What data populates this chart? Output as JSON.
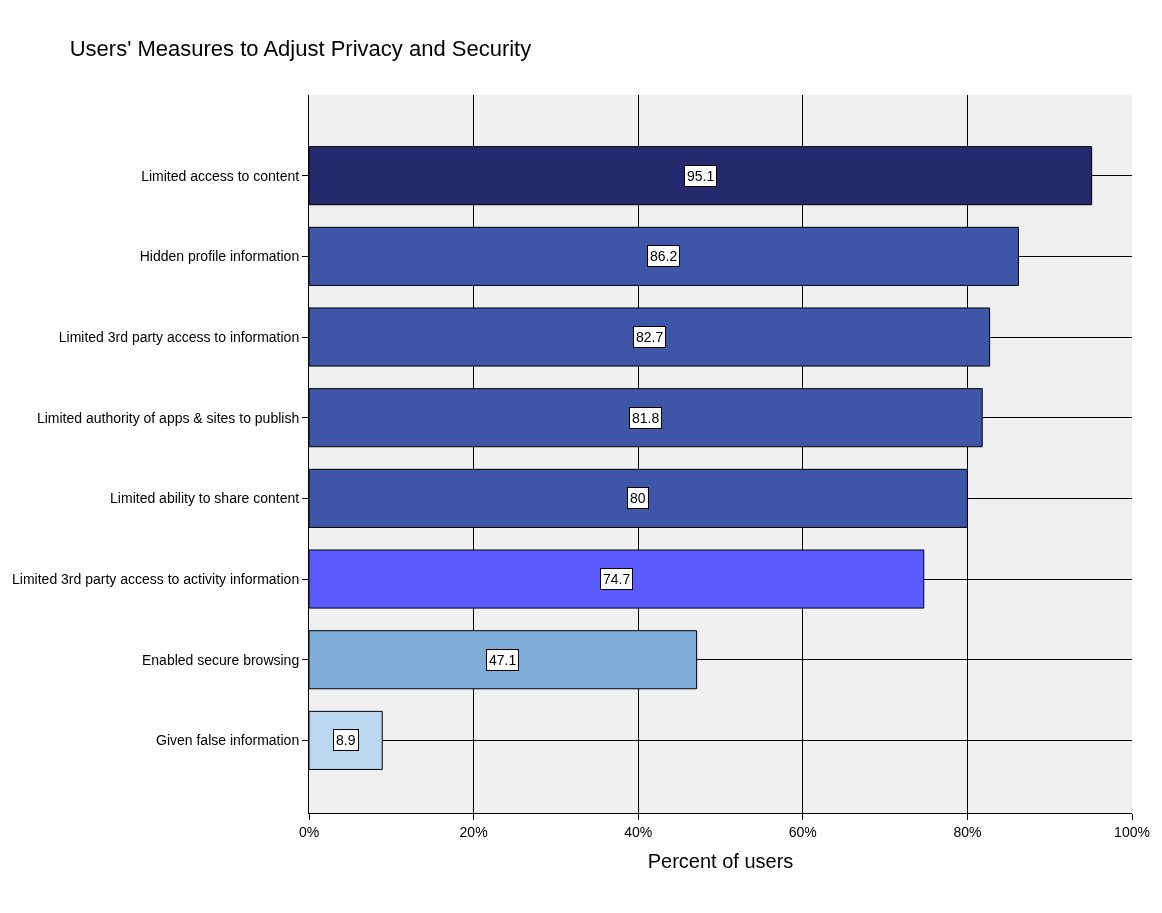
{
  "chart_data": {
    "type": "bar",
    "orientation": "horizontal",
    "title": "Users' Measures to Adjust Privacy and Security",
    "xlabel": "Percent of users",
    "categories": [
      "Limited access to content",
      "Hidden profile information",
      "Limited 3rd party access to information",
      "Limited authority of apps & sites to publish",
      "Limited ability to share content",
      "Limited 3rd party access to activity information",
      "Enabled secure browsing",
      "Given false information"
    ],
    "values": [
      95.1,
      86.2,
      82.7,
      81.8,
      80,
      74.7,
      47.1,
      8.9
    ],
    "colors": [
      "#27296f",
      "#3d56a8",
      "#3d56a8",
      "#3d56a8",
      "#3d56a8",
      "#5a5cff",
      "#7eadd8",
      "#bcd8f0"
    ],
    "xlim": [
      0,
      100
    ],
    "xticks": [
      {
        "value": 0,
        "label": "0%"
      },
      {
        "value": 20,
        "label": "20%"
      },
      {
        "value": 40,
        "label": "40%"
      },
      {
        "value": 60,
        "label": "60%"
      },
      {
        "value": 80,
        "label": "80%"
      },
      {
        "value": 100,
        "label": "100%"
      }
    ],
    "data_labels": true,
    "grid": true,
    "legend": false
  }
}
